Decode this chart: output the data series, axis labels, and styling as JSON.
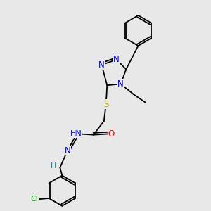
{
  "background_color": "#e8e8e8",
  "bond_color": "#000000",
  "atom_colors": {
    "N": "#0000ee",
    "O": "#ff0000",
    "S": "#bbaa00",
    "Cl": "#00aa00",
    "H": "#008888",
    "C": "#000000"
  },
  "lw": 1.3,
  "fs": 8.5,
  "xlim": [
    0,
    10
  ],
  "ylim": [
    0,
    10
  ]
}
